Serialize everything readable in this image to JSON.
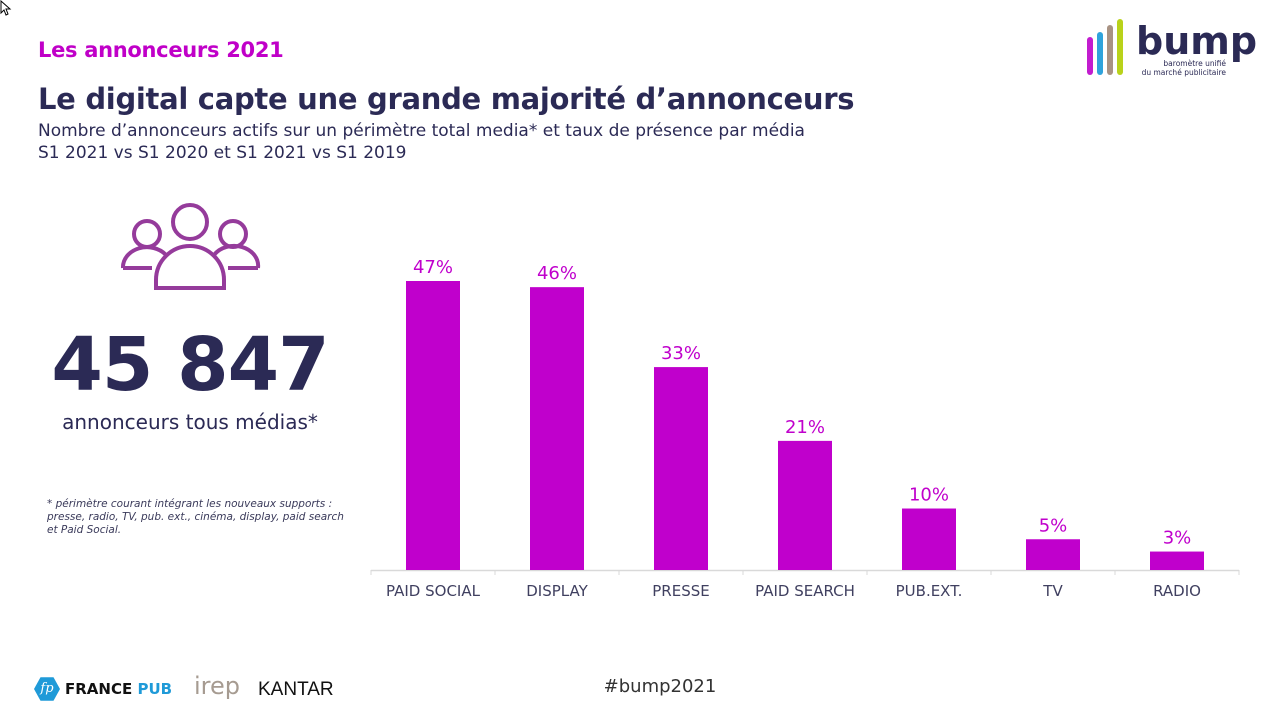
{
  "header": {
    "kicker": "Les annonceurs 2021",
    "title": "Le digital capte une grande majorité d’annonceurs",
    "subtitle_line1": "Nombre d’annonceurs actifs sur un périmètre total media* et taux de présence par média",
    "subtitle_line2": "S1 2021 vs S1 2020 et S1 2021 vs S1 2019"
  },
  "kpi": {
    "icon": "users-group-icon",
    "value": "45 847",
    "label": "annonceurs tous médias*"
  },
  "footnote": "* périmètre courant intégrant les nouveaux supports : presse, radio, TV, pub. ext., cinéma, display, paid search et Paid Social.",
  "footer": {
    "hashtag": "#bump2021",
    "logos": {
      "france_pub": {
        "mark": "fp",
        "word1": "FRANCE",
        "word2": "PUB"
      },
      "irep": "irep",
      "kantar": "KANTAR"
    }
  },
  "brand": {
    "name": "bump",
    "tagline_line1": "baromètre unifié",
    "tagline_line2": "du marché publicitaire",
    "bar_colors": [
      "#c21ccf",
      "#2fa3dc",
      "#a89283",
      "#b9d21a"
    ],
    "text_color": "#2b2a55"
  },
  "colors": {
    "accent": "#c000c8",
    "bar": "#c000cc",
    "navy": "#2b2a55",
    "axis": "#d9d9d9"
  },
  "chart_data": {
    "type": "bar",
    "title": "",
    "xlabel": "",
    "ylabel": "",
    "categories": [
      "PAID SOCIAL",
      "DISPLAY",
      "PRESSE",
      "PAID SEARCH",
      "PUB.EXT.",
      "TV",
      "RADIO"
    ],
    "values": [
      47,
      46,
      33,
      21,
      10,
      5,
      3
    ],
    "value_labels": [
      "47%",
      "46%",
      "33%",
      "21%",
      "10%",
      "5%",
      "3%"
    ],
    "unit": "%",
    "ylim": [
      0,
      47
    ],
    "grid": false,
    "legend": "none"
  }
}
